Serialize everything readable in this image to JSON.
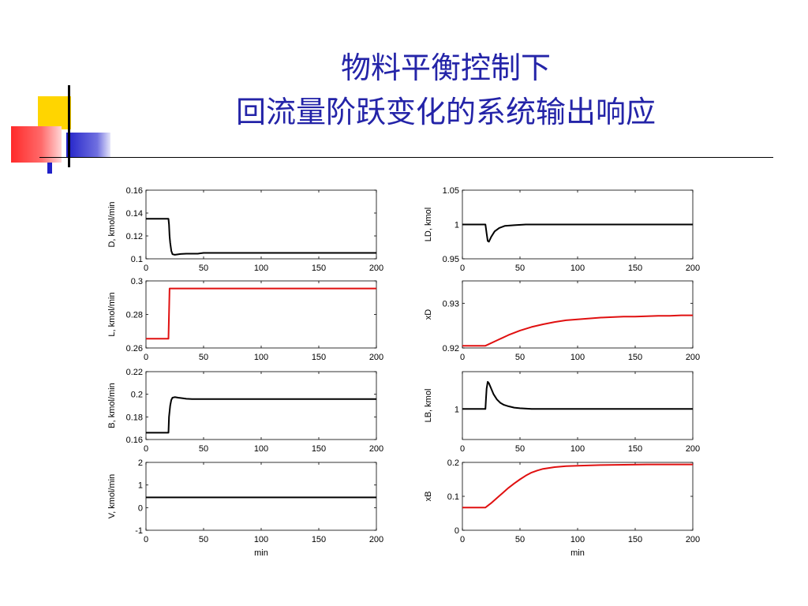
{
  "title": {
    "line1": "物料平衡控制下",
    "line2": "回流量阶跃变化的系统输出响应"
  },
  "colors": {
    "title": "#2424a8",
    "decor_yellow": "#ffd500",
    "decor_red": "#ff2a2a",
    "decor_blue": "#2020c8",
    "curve_black": "#000000",
    "curve_red": "#e01010"
  },
  "chart_data": [
    {
      "type": "line",
      "panel": "top-left",
      "ylabel": "D, kmol/min",
      "xlabel": "",
      "xlim": [
        0,
        200
      ],
      "ylim": [
        0.1,
        0.16
      ],
      "xticks": [
        "0",
        "50",
        "100",
        "150",
        "200"
      ],
      "yticks": [
        "0.1",
        "0.12",
        "0.14",
        "0.16"
      ],
      "color": "black",
      "series": [
        {
          "x": [
            0,
            19.5,
            20,
            20.5,
            21,
            22,
            23,
            25,
            27,
            30,
            35,
            45,
            50,
            200
          ],
          "y": [
            0.135,
            0.135,
            0.13,
            0.12,
            0.114,
            0.107,
            0.104,
            0.1035,
            0.1038,
            0.1042,
            0.1045,
            0.1045,
            0.1052,
            0.1052
          ]
        }
      ]
    },
    {
      "type": "line",
      "panel": "top-right",
      "ylabel": "LD, kmol",
      "xlabel": "",
      "xlim": [
        0,
        200
      ],
      "ylim": [
        0.95,
        1.05
      ],
      "xticks": [
        "0",
        "50",
        "100",
        "150",
        "200"
      ],
      "yticks": [
        "0.95",
        "1",
        "1.05"
      ],
      "color": "black",
      "series": [
        {
          "x": [
            0,
            20,
            21,
            22,
            23,
            25,
            28,
            32,
            37,
            45,
            55,
            60,
            200
          ],
          "y": [
            1.0,
            1.0,
            0.987,
            0.976,
            0.975,
            0.982,
            0.99,
            0.995,
            0.998,
            0.999,
            1.0,
            1.0,
            1.0
          ]
        }
      ]
    },
    {
      "type": "line",
      "panel": "row2-left",
      "ylabel": "L, kmol/min",
      "xlabel": "",
      "xlim": [
        0,
        200
      ],
      "ylim": [
        0.26,
        0.3
      ],
      "xticks": [
        "0",
        "50",
        "100",
        "150",
        "200"
      ],
      "yticks": [
        "0.26",
        "0.28",
        "0.3"
      ],
      "color": "red",
      "series": [
        {
          "x": [
            0,
            19.5,
            20.5,
            200
          ],
          "y": [
            0.2655,
            0.2655,
            0.2955,
            0.2955
          ]
        }
      ]
    },
    {
      "type": "line",
      "panel": "row2-right",
      "ylabel": "xD",
      "xlabel": "",
      "xlim": [
        0,
        200
      ],
      "ylim": [
        0.92,
        0.935
      ],
      "xticks": [
        "0",
        "50",
        "100",
        "150",
        "200"
      ],
      "yticks": [
        "0.92",
        "0.93"
      ],
      "color": "red",
      "series": [
        {
          "x": [
            0,
            20,
            30,
            40,
            50,
            60,
            70,
            80,
            90,
            100,
            110,
            120,
            130,
            140,
            150,
            160,
            170,
            180,
            190,
            200
          ],
          "y": [
            0.9205,
            0.9205,
            0.9217,
            0.9229,
            0.9239,
            0.9247,
            0.9253,
            0.9258,
            0.9262,
            0.9264,
            0.9266,
            0.9268,
            0.9269,
            0.927,
            0.927,
            0.9271,
            0.9272,
            0.9272,
            0.9273,
            0.9273
          ]
        }
      ]
    },
    {
      "type": "line",
      "panel": "row3-left",
      "ylabel": "B, kmol/min",
      "xlabel": "",
      "xlim": [
        0,
        200
      ],
      "ylim": [
        0.16,
        0.22
      ],
      "xticks": [
        "0",
        "50",
        "100",
        "150",
        "200"
      ],
      "yticks": [
        "0.16",
        "0.18",
        "0.2",
        "0.22"
      ],
      "color": "black",
      "series": [
        {
          "x": [
            0,
            19.5,
            20,
            21,
            22,
            23,
            25,
            28,
            32,
            35,
            40,
            50,
            200
          ],
          "y": [
            0.166,
            0.166,
            0.18,
            0.19,
            0.195,
            0.197,
            0.1975,
            0.197,
            0.1965,
            0.196,
            0.1958,
            0.1958,
            0.1958
          ]
        }
      ]
    },
    {
      "type": "line",
      "panel": "row3-right",
      "ylabel": "LB, kmol",
      "xlabel": "",
      "xlim": [
        0,
        200
      ],
      "ylim": [
        0.955,
        1.055
      ],
      "xticks": [
        "0",
        "50",
        "100",
        "150",
        "200"
      ],
      "yticks": [
        "1"
      ],
      "color": "black",
      "series": [
        {
          "x": [
            0,
            20,
            20.5,
            21,
            22,
            23,
            25,
            27,
            30,
            33,
            36,
            40,
            45,
            50,
            60,
            70,
            200
          ],
          "y": [
            1.0,
            1.0,
            1.015,
            1.03,
            1.04,
            1.038,
            1.03,
            1.022,
            1.014,
            1.009,
            1.006,
            1.004,
            1.002,
            1.001,
            1.0,
            1.0,
            1.0
          ]
        }
      ]
    },
    {
      "type": "line",
      "panel": "bottom-left",
      "ylabel": "V, kmol/min",
      "xlabel": "min",
      "xlim": [
        0,
        200
      ],
      "ylim": [
        -1,
        2
      ],
      "xticks": [
        "0",
        "50",
        "100",
        "150",
        "200"
      ],
      "yticks": [
        "-1",
        "0",
        "1",
        "2"
      ],
      "color": "black",
      "series": [
        {
          "x": [
            0,
            200
          ],
          "y": [
            0.45,
            0.45
          ]
        }
      ]
    },
    {
      "type": "line",
      "panel": "bottom-right",
      "ylabel": "xB",
      "xlabel": "min",
      "xlim": [
        0,
        200
      ],
      "ylim": [
        0,
        0.2
      ],
      "xticks": [
        "0",
        "50",
        "100",
        "150",
        "200"
      ],
      "yticks": [
        "0",
        "0.1",
        "0.2"
      ],
      "color": "red",
      "series": [
        {
          "x": [
            0,
            19,
            20,
            25,
            30,
            35,
            40,
            45,
            50,
            55,
            60,
            65,
            70,
            80,
            90,
            100,
            120,
            140,
            160,
            180,
            200
          ],
          "y": [
            0.067,
            0.067,
            0.067,
            0.08,
            0.095,
            0.11,
            0.125,
            0.138,
            0.15,
            0.161,
            0.17,
            0.176,
            0.181,
            0.186,
            0.189,
            0.19,
            0.192,
            0.193,
            0.194,
            0.194,
            0.194
          ]
        }
      ]
    }
  ]
}
